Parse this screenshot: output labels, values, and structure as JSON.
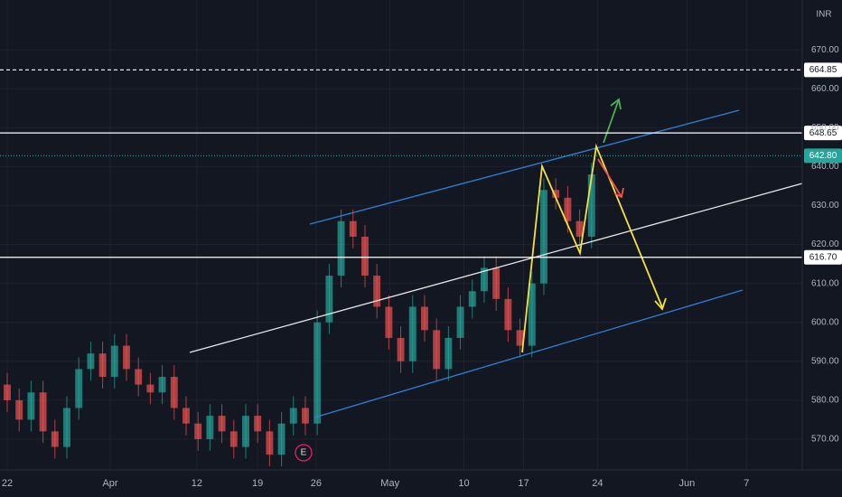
{
  "chart_data": {
    "type": "candlestick",
    "currency": "INR",
    "x": [
      0,
      1,
      2,
      3,
      4,
      5,
      6,
      7,
      8,
      9,
      10,
      11,
      12,
      13,
      14,
      15,
      16,
      17,
      18,
      19,
      20,
      21,
      22,
      23,
      24,
      25,
      26,
      27,
      28,
      29,
      30,
      31,
      32,
      33,
      34,
      35,
      36,
      37,
      38,
      39,
      40,
      41,
      42,
      43,
      44,
      45,
      46,
      47,
      48,
      49
    ],
    "open": [
      584,
      580,
      575,
      582,
      572,
      568,
      578,
      588,
      592,
      586,
      594,
      588,
      584,
      582,
      586,
      578,
      574,
      570,
      576,
      572,
      568,
      576,
      572,
      566,
      574,
      578,
      574,
      600,
      612,
      626,
      622,
      612,
      604,
      596,
      590,
      604,
      598,
      588,
      596,
      604,
      608,
      614,
      606,
      598,
      594,
      610,
      634,
      632,
      626,
      622
    ],
    "high": [
      587,
      583,
      585,
      585,
      575,
      581,
      591,
      595,
      595,
      597,
      597,
      591,
      587,
      589,
      589,
      581,
      577,
      579,
      579,
      575,
      579,
      579,
      575,
      577,
      581,
      581,
      603,
      615,
      629,
      629,
      625,
      615,
      607,
      599,
      607,
      607,
      601,
      599,
      607,
      611,
      617,
      617,
      609,
      601,
      613,
      637,
      637,
      635,
      629,
      641
    ],
    "low": [
      577,
      572,
      572,
      569,
      565,
      565,
      575,
      585,
      583,
      583,
      585,
      581,
      579,
      579,
      575,
      571,
      567,
      567,
      569,
      565,
      565,
      569,
      563,
      563,
      571,
      571,
      571,
      597,
      609,
      619,
      609,
      601,
      593,
      587,
      587,
      595,
      585,
      585,
      593,
      601,
      605,
      603,
      595,
      591,
      591,
      607,
      629,
      623,
      619,
      619
    ],
    "close": [
      580,
      575,
      582,
      572,
      568,
      578,
      588,
      592,
      586,
      594,
      588,
      584,
      582,
      586,
      578,
      574,
      570,
      576,
      572,
      568,
      576,
      572,
      566,
      574,
      578,
      574,
      600,
      612,
      626,
      622,
      612,
      604,
      596,
      590,
      604,
      598,
      588,
      596,
      604,
      608,
      614,
      606,
      598,
      594,
      610,
      634,
      632,
      626,
      622,
      638
    ],
    "up_color": "#26a69a",
    "down_color": "#ef5350",
    "xlim": [
      -0.606,
      66.67
    ],
    "xticks": [
      {
        "value": 0,
        "label": "22"
      },
      {
        "value": 8.64,
        "label": "Apr"
      },
      {
        "value": 15.9,
        "label": "12"
      },
      {
        "value": 21,
        "label": "19"
      },
      {
        "value": 25.9,
        "label": "26"
      },
      {
        "value": 32.1,
        "label": "May"
      },
      {
        "value": 38.3,
        "label": "10"
      },
      {
        "value": 43.3,
        "label": "17"
      },
      {
        "value": 49.5,
        "label": "24"
      },
      {
        "value": 57,
        "label": "Jun"
      },
      {
        "value": 62,
        "label": "7"
      }
    ],
    "ylim": [
      562.1,
      682.8
    ],
    "yticks": [
      {
        "value": 570,
        "label": "570.00"
      },
      {
        "value": 580,
        "label": "580.00"
      },
      {
        "value": 590,
        "label": "590.00"
      },
      {
        "value": 600,
        "label": "600.00"
      },
      {
        "value": 610,
        "label": "610.00"
      },
      {
        "value": 620,
        "label": "620.00"
      },
      {
        "value": 630,
        "label": "630.00"
      },
      {
        "value": 640,
        "label": "640.00"
      },
      {
        "value": 650,
        "label": "650.00"
      },
      {
        "value": 660,
        "label": "660.00"
      },
      {
        "value": 670,
        "label": "670.00"
      }
    ],
    "grid": true,
    "price_lines": {
      "values": [
        664.85,
        648.65,
        642.8,
        616.7
      ],
      "value_labels": [
        "664.85",
        "648.65",
        "642.80",
        "616.70"
      ],
      "styles": [
        "dashed",
        "solid",
        "dotted",
        "solid"
      ],
      "colors": [
        "#ffffff",
        "#ffffff",
        "#26a69a",
        "#ffffff"
      ]
    },
    "event_marker": "E"
  }
}
